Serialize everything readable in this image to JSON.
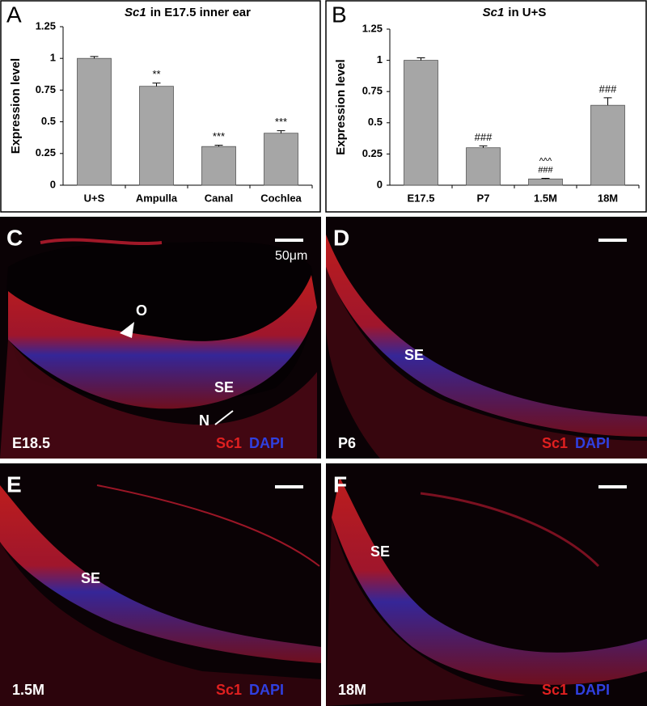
{
  "chart_data": [
    {
      "type": "bar",
      "panel": "A",
      "title": [
        "Sc1",
        "in E17.5 inner ear"
      ],
      "ylabel": "Expression level",
      "categories": [
        "U+S",
        "Ampulla",
        "Canal",
        "Cochlea"
      ],
      "values": [
        1.0,
        0.78,
        0.305,
        0.41
      ],
      "errors": [
        0.015,
        0.025,
        0.01,
        0.02
      ],
      "significance": [
        null,
        "**",
        "***",
        "***"
      ],
      "color": "#a6a6a6",
      "ylim": [
        0,
        1.25
      ],
      "yticks": [
        0,
        0.25,
        0.5,
        0.75,
        1,
        1.25
      ]
    },
    {
      "type": "bar",
      "panel": "B",
      "title": [
        "Sc1",
        "in U+S"
      ],
      "ylabel": "Expression level",
      "categories": [
        "E17.5",
        "P7",
        "1.5M",
        "18M"
      ],
      "values": [
        1.0,
        0.3,
        0.05,
        0.64
      ],
      "errors": [
        0.02,
        0.015,
        0.005,
        0.06
      ],
      "significance": [
        null,
        "###",
        [
          "^^^",
          "###"
        ],
        "###"
      ],
      "color": "#a6a6a6",
      "ylim": [
        0,
        1.25
      ],
      "yticks": [
        0,
        0.25,
        0.5,
        0.75,
        1,
        1.25
      ]
    }
  ],
  "images": [
    {
      "panel": "C",
      "scale": "50μm",
      "labels": [
        "O",
        "SE",
        "N"
      ],
      "age": "E18.5",
      "stain": [
        "Sc1",
        "DAPI"
      ]
    },
    {
      "panel": "D",
      "labels": [
        "SE"
      ],
      "age": "P6",
      "stain": [
        "Sc1",
        "DAPI"
      ]
    },
    {
      "panel": "E",
      "labels": [
        "SE"
      ],
      "age": "1.5M",
      "stain": [
        "Sc1",
        "DAPI"
      ]
    },
    {
      "panel": "F",
      "labels": [
        "SE"
      ],
      "age": "18M",
      "stain": [
        "Sc1",
        "DAPI"
      ]
    }
  ]
}
